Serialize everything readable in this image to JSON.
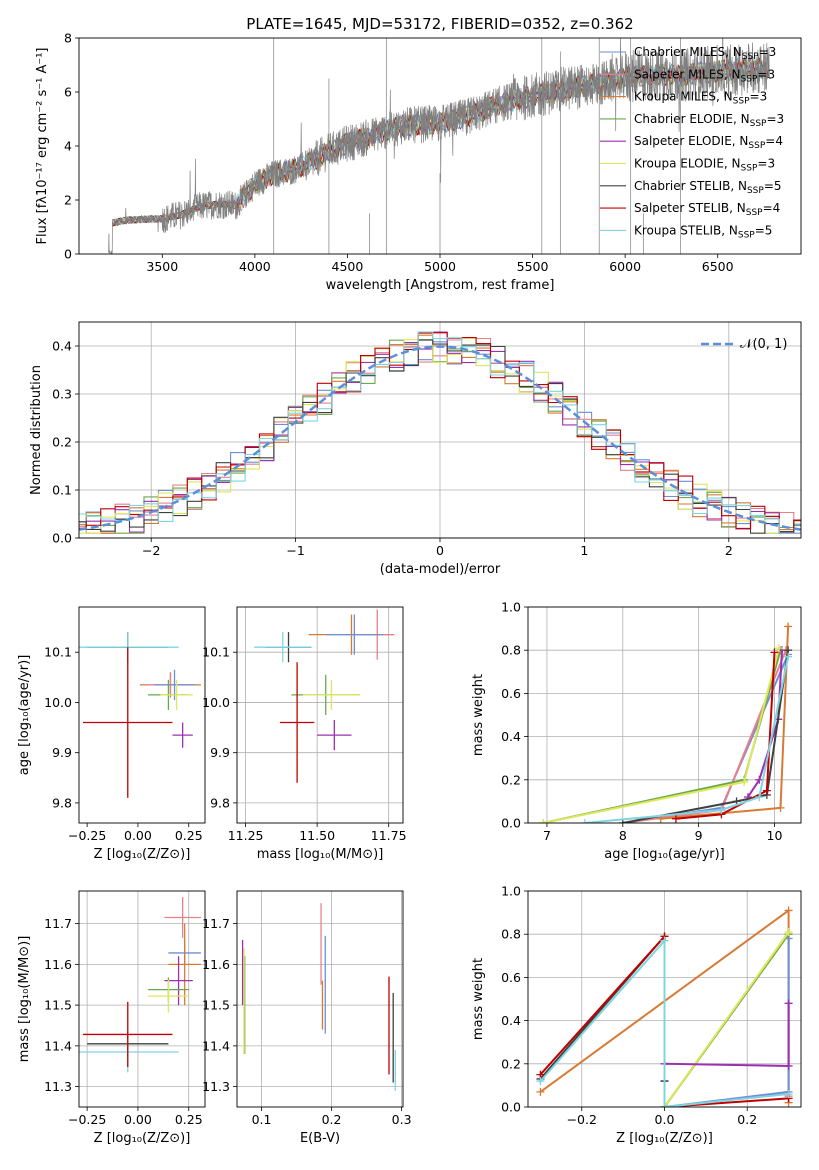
{
  "figure_title": "PLATE=1645, MJD=53172, FIBERID=0352, z=0.362",
  "legend": [
    {
      "name": "Chabrier MILES",
      "nssp": "3",
      "color": "#6c8fd6"
    },
    {
      "name": "Salpeter MILES",
      "nssp": "3",
      "color": "#e8808a"
    },
    {
      "name": "Kroupa MILES",
      "nssp": "3",
      "color": "#d97a34"
    },
    {
      "name": "Chabrier ELODIE",
      "nssp": "3",
      "color": "#6aa84f"
    },
    {
      "name": "Salpeter ELODIE",
      "nssp": "4",
      "color": "#9b30b0"
    },
    {
      "name": "Kroupa ELODIE",
      "nssp": "3",
      "color": "#dce85a"
    },
    {
      "name": "Chabrier STELIB",
      "nssp": "5",
      "color": "#404040"
    },
    {
      "name": "Salpeter STELIB",
      "nssp": "4",
      "color": "#c00000"
    },
    {
      "name": "Kroupa STELIB",
      "nssp": "5",
      "color": "#7fd4e0"
    }
  ],
  "legend_suffix": "N",
  "legend_suffix_sub": "SSP",
  "chart_data": [
    {
      "id": "spectrum",
      "type": "line",
      "xlabel": "wavelength [Angstrom, rest frame]",
      "ylabel": "Flux [fλ10⁻¹⁷ erg cm⁻² s⁻¹ A⁻¹]",
      "xlim": [
        3050,
        6950
      ],
      "ylim": [
        0,
        8
      ],
      "xticks": [
        3500,
        4000,
        4500,
        5000,
        5500,
        6000,
        6500
      ],
      "yticks": [
        0,
        2,
        4,
        6,
        8
      ],
      "data_color": "#808080",
      "data_start": 3210,
      "continuum": [
        [
          3210,
          0.0
        ],
        [
          3230,
          1.15
        ],
        [
          3300,
          1.25
        ],
        [
          3450,
          1.3
        ],
        [
          3500,
          1.3
        ],
        [
          3600,
          1.45
        ],
        [
          3700,
          1.75
        ],
        [
          3800,
          1.85
        ],
        [
          3900,
          1.8
        ],
        [
          3950,
          2.2
        ],
        [
          4000,
          2.6
        ],
        [
          4100,
          2.95
        ],
        [
          4200,
          3.1
        ],
        [
          4300,
          3.4
        ],
        [
          4400,
          3.8
        ],
        [
          4500,
          4.1
        ],
        [
          4600,
          4.3
        ],
        [
          4700,
          4.55
        ],
        [
          4800,
          4.75
        ],
        [
          4900,
          4.8
        ],
        [
          5000,
          4.85
        ],
        [
          5100,
          5.0
        ],
        [
          5200,
          5.2
        ],
        [
          5300,
          5.5
        ],
        [
          5400,
          5.7
        ],
        [
          5500,
          5.85
        ],
        [
          5600,
          6.0
        ],
        [
          5700,
          6.15
        ],
        [
          5800,
          6.25
        ],
        [
          5900,
          6.35
        ],
        [
          6000,
          6.55
        ],
        [
          6100,
          6.6
        ],
        [
          6200,
          6.65
        ],
        [
          6300,
          6.6
        ],
        [
          6400,
          6.7
        ],
        [
          6500,
          6.75
        ],
        [
          6600,
          6.85
        ],
        [
          6700,
          6.9
        ],
        [
          6780,
          6.9
        ]
      ]
    },
    {
      "id": "residuals",
      "type": "line",
      "xlabel": "(data-model)/error",
      "ylabel": "Normed distribution",
      "xlim": [
        -2.5,
        2.5
      ],
      "ylim": [
        0,
        0.45
      ],
      "xticks": [
        -2,
        -1,
        0,
        1,
        2
      ],
      "yticks": [
        0.0,
        0.1,
        0.2,
        0.3,
        0.4
      ],
      "gaussian_label": "𝒩(0, 1)",
      "gaussian_color": "#5b8fd9"
    },
    {
      "id": "age_vs_Z",
      "type": "scatter",
      "xlabel": "Z [log₁₀(Z/Z⊙)]",
      "ylabel": "age  [log₁₀(age/yr)]",
      "xlim": [
        -0.29,
        0.33
      ],
      "ylim": [
        9.76,
        10.19
      ],
      "xticks": [
        -0.25,
        0.0,
        0.25
      ],
      "yticks": [
        9.8,
        9.9,
        10.0,
        10.1
      ],
      "points": [
        {
          "x": 0.16,
          "y": 10.035,
          "xe": 0.15,
          "ye": 0.025,
          "color": "#d97a34"
        },
        {
          "x": 0.16,
          "y": 10.035,
          "xe": 0.12,
          "ye": 0.02,
          "color": "#e8808a"
        },
        {
          "x": 0.18,
          "y": 10.035,
          "xe": 0.1,
          "ye": 0.03,
          "color": "#6c8fd6"
        },
        {
          "x": 0.15,
          "y": 10.015,
          "xe": 0.1,
          "ye": 0.03,
          "color": "#6aa84f"
        },
        {
          "x": 0.19,
          "y": 10.015,
          "xe": 0.08,
          "ye": 0.03,
          "color": "#dce85a"
        },
        {
          "x": 0.22,
          "y": 9.935,
          "xe": 0.05,
          "ye": 0.025,
          "color": "#9b30b0"
        },
        {
          "x": -0.05,
          "y": 10.11,
          "xe": 0.2,
          "ye": 0.03,
          "color": "#404040"
        },
        {
          "x": -0.05,
          "y": 10.11,
          "xe": 0.25,
          "ye": 0.03,
          "color": "#7fd4e0"
        },
        {
          "x": -0.05,
          "y": 9.96,
          "xe": 0.22,
          "ye": 0.15,
          "color": "#c00000"
        }
      ]
    },
    {
      "id": "age_vs_mass",
      "type": "scatter",
      "xlabel": "mass [log₁₀(M/M⊙)]",
      "ylabel": "",
      "xlim": [
        11.22,
        11.8
      ],
      "ylim": [
        9.76,
        10.19
      ],
      "xticks": [
        11.25,
        11.5,
        11.75
      ],
      "yticks": [
        9.8,
        9.9,
        10.0,
        10.1
      ],
      "points": [
        {
          "x": 11.62,
          "y": 10.135,
          "xe": 0.15,
          "ye": 0.04,
          "color": "#d97a34"
        },
        {
          "x": 11.71,
          "y": 10.135,
          "xe": 0.06,
          "ye": 0.05,
          "color": "#e8808a"
        },
        {
          "x": 11.63,
          "y": 10.135,
          "xe": 0.1,
          "ye": 0.04,
          "color": "#6c8fd6"
        },
        {
          "x": 11.53,
          "y": 10.015,
          "xe": 0.12,
          "ye": 0.04,
          "color": "#6aa84f"
        },
        {
          "x": 11.55,
          "y": 10.015,
          "xe": 0.1,
          "ye": 0.03,
          "color": "#dce85a"
        },
        {
          "x": 11.56,
          "y": 9.935,
          "xe": 0.06,
          "ye": 0.03,
          "color": "#9b30b0"
        },
        {
          "x": 11.4,
          "y": 10.11,
          "xe": 0.08,
          "ye": 0.03,
          "color": "#404040"
        },
        {
          "x": 11.38,
          "y": 10.11,
          "xe": 0.1,
          "ye": 0.03,
          "color": "#7fd4e0"
        },
        {
          "x": 11.43,
          "y": 9.96,
          "xe": 0.06,
          "ye": 0.12,
          "color": "#c00000"
        }
      ]
    },
    {
      "id": "weight_vs_age",
      "type": "line",
      "xlabel": "age  [log₁₀(age/yr)]",
      "ylabel": "mass weight",
      "xlim": [
        6.75,
        10.35
      ],
      "ylim": [
        0,
        1
      ],
      "xticks": [
        7,
        8,
        9,
        10
      ],
      "yticks": [
        0.0,
        0.2,
        0.4,
        0.6,
        0.8,
        1.0
      ],
      "series": [
        {
          "color": "#6c8fd6",
          "points": [
            [
              8.0,
              0.0
            ],
            [
              9.3,
              0.07
            ],
            [
              10.18,
              0.78
            ]
          ]
        },
        {
          "color": "#e8808a",
          "points": [
            [
              8.0,
              0.0
            ],
            [
              9.3,
              0.06
            ],
            [
              10.15,
              0.8
            ]
          ]
        },
        {
          "color": "#d97a34",
          "points": [
            [
              8.5,
              0.02
            ],
            [
              10.08,
              0.07
            ],
            [
              10.18,
              0.91
            ]
          ]
        },
        {
          "color": "#6aa84f",
          "points": [
            [
              6.95,
              0.0
            ],
            [
              9.6,
              0.2
            ],
            [
              10.08,
              0.8
            ]
          ]
        },
        {
          "color": "#9b30b0",
          "points": [
            [
              9.65,
              0.12
            ],
            [
              9.8,
              0.2
            ],
            [
              10.05,
              0.48
            ],
            [
              10.1,
              0.8
            ]
          ]
        },
        {
          "color": "#dce85a",
          "points": [
            [
              6.95,
              0.0
            ],
            [
              9.6,
              0.19
            ],
            [
              10.06,
              0.81
            ]
          ]
        },
        {
          "color": "#404040",
          "points": [
            [
              8.0,
              0.0
            ],
            [
              9.5,
              0.1
            ],
            [
              9.9,
              0.13
            ],
            [
              10.18,
              0.8
            ]
          ]
        },
        {
          "color": "#c00000",
          "points": [
            [
              8.7,
              0.02
            ],
            [
              9.3,
              0.04
            ],
            [
              9.9,
              0.15
            ],
            [
              10.0,
              0.79
            ]
          ]
        },
        {
          "color": "#7fd4e0",
          "points": [
            [
              7.5,
              0.0
            ],
            [
              9.3,
              0.06
            ],
            [
              9.8,
              0.12
            ],
            [
              10.18,
              0.77
            ]
          ]
        }
      ]
    },
    {
      "id": "mass_vs_Z",
      "type": "scatter",
      "xlabel": "Z [log₁₀(Z/Z⊙)]",
      "ylabel": "mass [log₁₀(M/M⊙)]",
      "xlim": [
        -0.29,
        0.33
      ],
      "ylim": [
        11.25,
        11.78
      ],
      "xticks": [
        -0.25,
        0.0,
        0.25
      ],
      "yticks": [
        11.3,
        11.4,
        11.5,
        11.6,
        11.7
      ],
      "points": [
        {
          "x": 0.22,
          "y": 11.715,
          "xe": 0.09,
          "ye": 0.05,
          "color": "#e8808a"
        },
        {
          "x": 0.23,
          "y": 11.628,
          "xe": 0.08,
          "ye": 0.03,
          "color": "#6c8fd6"
        },
        {
          "x": 0.23,
          "y": 11.6,
          "xe": 0.08,
          "ye": 0.1,
          "color": "#d97a34"
        },
        {
          "x": 0.2,
          "y": 11.56,
          "xe": 0.07,
          "ye": 0.06,
          "color": "#9b30b0"
        },
        {
          "x": 0.15,
          "y": 11.538,
          "xe": 0.1,
          "ye": 0.03,
          "color": "#6aa84f"
        },
        {
          "x": 0.15,
          "y": 11.522,
          "xe": 0.1,
          "ye": 0.04,
          "color": "#dce85a"
        },
        {
          "x": -0.05,
          "y": 11.405,
          "xe": 0.2,
          "ye": 0.03,
          "color": "#404040"
        },
        {
          "x": -0.05,
          "y": 11.385,
          "xe": 0.25,
          "ye": 0.05,
          "color": "#7fd4e0"
        },
        {
          "x": -0.05,
          "y": 11.428,
          "xe": 0.22,
          "ye": 0.08,
          "color": "#c00000"
        }
      ]
    },
    {
      "id": "mass_vs_ebv",
      "type": "scatter",
      "xlabel": "E(B-V)",
      "ylabel": "",
      "xlim": [
        0.065,
        0.302
      ],
      "ylim": [
        11.25,
        11.78
      ],
      "xticks": [
        0.1,
        0.2,
        0.3
      ],
      "yticks": [
        11.3,
        11.4,
        11.5,
        11.6,
        11.7
      ],
      "points": [
        {
          "x": 0.073,
          "y": 11.58,
          "ye": 0.08,
          "color": "#9b30b0"
        },
        {
          "x": 0.076,
          "y": 11.5,
          "ye": 0.12,
          "color": "#6aa84f"
        },
        {
          "x": 0.075,
          "y": 11.51,
          "ye": 0.13,
          "color": "#dce85a"
        },
        {
          "x": 0.185,
          "y": 11.65,
          "ye": 0.1,
          "color": "#e8808a"
        },
        {
          "x": 0.187,
          "y": 11.5,
          "ye": 0.06,
          "color": "#d97a34"
        },
        {
          "x": 0.191,
          "y": 11.55,
          "ye": 0.12,
          "color": "#6c8fd6"
        },
        {
          "x": 0.282,
          "y": 11.45,
          "ye": 0.12,
          "color": "#c00000"
        },
        {
          "x": 0.288,
          "y": 11.42,
          "ye": 0.11,
          "color": "#404040"
        },
        {
          "x": 0.291,
          "y": 11.34,
          "ye": 0.05,
          "color": "#7fd4e0"
        }
      ]
    },
    {
      "id": "weight_vs_Z",
      "type": "line",
      "xlabel": "Z [log₁₀(Z/Z⊙)]",
      "ylabel": "mass weight",
      "xlim": [
        -0.33,
        0.33
      ],
      "ylim": [
        0,
        1
      ],
      "xticks": [
        -0.2,
        0.0,
        0.2
      ],
      "yticks": [
        0.0,
        0.2,
        0.4,
        0.6,
        0.8,
        1.0
      ],
      "series": [
        {
          "color": "#d97a34",
          "points": [
            [
              -0.3,
              0.07
            ],
            [
              0.3,
              0.91
            ],
            [
              0.3,
              0.02
            ]
          ]
        },
        {
          "color": "#e8808a",
          "points": [
            [
              0.0,
              0.0
            ],
            [
              0.3,
              0.8
            ],
            [
              0.3,
              0.05
            ]
          ]
        },
        {
          "color": "#6c8fd6",
          "points": [
            [
              0.0,
              0.0
            ],
            [
              0.3,
              0.07
            ],
            [
              0.3,
              0.78
            ]
          ]
        },
        {
          "color": "#6aa84f",
          "points": [
            [
              0.0,
              0.0
            ],
            [
              0.3,
              0.8
            ]
          ]
        },
        {
          "color": "#dce85a",
          "points": [
            [
              0.0,
              0.0
            ],
            [
              0.3,
              0.81
            ]
          ]
        },
        {
          "color": "#9b30b0",
          "points": [
            [
              0.0,
              0.12
            ],
            [
              0.0,
              0.2
            ],
            [
              0.3,
              0.19
            ],
            [
              0.3,
              0.48
            ]
          ]
        },
        {
          "color": "#404040",
          "points": [
            [
              -0.3,
              0.13
            ],
            [
              0.0,
              0.79
            ],
            [
              0.0,
              0.12
            ]
          ]
        },
        {
          "color": "#c00000",
          "points": [
            [
              -0.3,
              0.15
            ],
            [
              0.0,
              0.79
            ],
            [
              0.0,
              0.0
            ],
            [
              0.3,
              0.04
            ]
          ]
        },
        {
          "color": "#7fd4e0",
          "points": [
            [
              -0.3,
              0.12
            ],
            [
              0.0,
              0.77
            ],
            [
              0.0,
              0.0
            ],
            [
              0.3,
              0.06
            ]
          ]
        }
      ]
    }
  ]
}
